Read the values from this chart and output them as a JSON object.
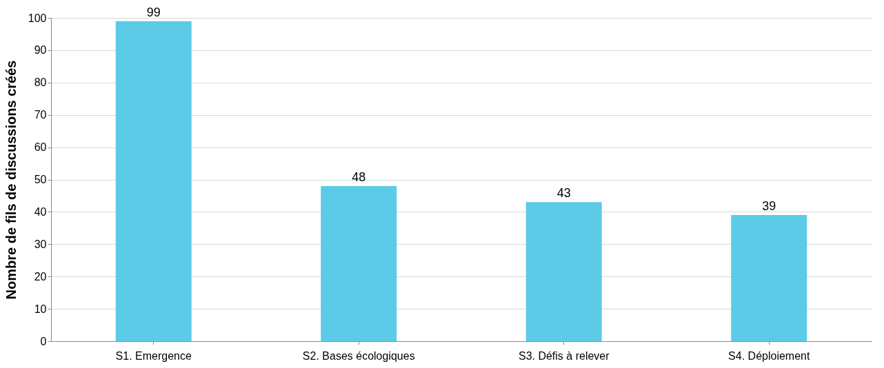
{
  "chart_data": {
    "type": "bar",
    "ylabel": "Nombre de fils de discussions créés",
    "categories": [
      "S1. Emergence",
      "S2. Bases écologiques",
      "S3. Défis à relever",
      "S4. Déploiement"
    ],
    "values": [
      99,
      48,
      43,
      39
    ],
    "color": "#5ccbe8",
    "ylim": [
      0,
      100
    ],
    "yticks": [
      0,
      10,
      20,
      30,
      40,
      50,
      60,
      70,
      80,
      90,
      100
    ],
    "grid": "y",
    "data_labels": true
  }
}
